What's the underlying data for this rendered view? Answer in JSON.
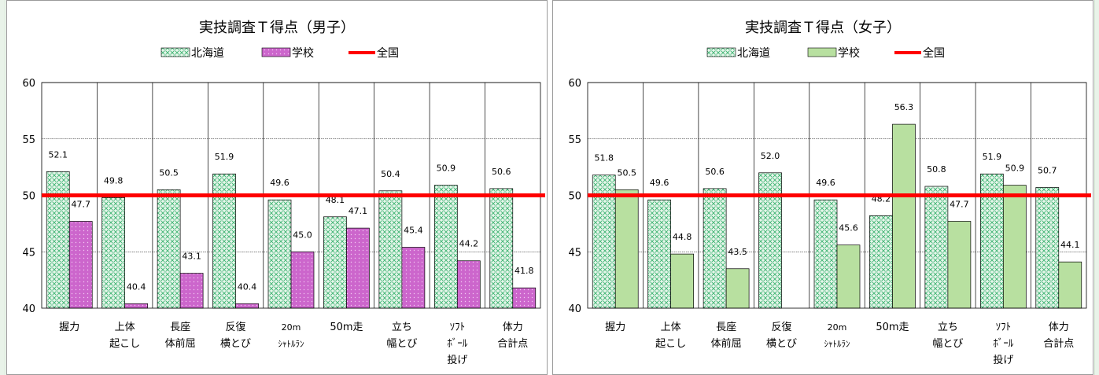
{
  "colors": {
    "hokkaido_fill": "#3cb371",
    "hokkaido_bg": "#e6f6ea",
    "school_boys": "#cc66cc",
    "school_girls": "#b8e0a0",
    "national_line": "#ff0000"
  },
  "chart_data": [
    {
      "type": "bar",
      "title": "実技調査Ｔ得点（男子）",
      "categories": [
        "握力",
        "上体\n起こし",
        "長座\n体前屈",
        "反復\n横とび",
        "20m\nｼｬﾄﾙﾗﾝ",
        "50m走",
        "立ち\n幅とび",
        "ｿﾌﾄ\nﾎﾞｰﾙ\n投げ",
        "体力\n合計点"
      ],
      "series": [
        {
          "name": "北海道",
          "values": [
            52.1,
            49.8,
            50.5,
            51.9,
            49.6,
            48.1,
            50.4,
            50.9,
            50.6
          ]
        },
        {
          "name": "学校",
          "values": [
            47.7,
            40.4,
            43.1,
            40.4,
            45.0,
            47.1,
            45.4,
            44.2,
            41.8
          ]
        }
      ],
      "reference_line": {
        "name": "全国",
        "value": 50
      },
      "ylim": [
        40,
        60
      ],
      "yticks": [
        40,
        45,
        50,
        55,
        60
      ],
      "grid": true,
      "legend": "top-center"
    },
    {
      "type": "bar",
      "title": "実技調査Ｔ得点（女子）",
      "categories": [
        "握力",
        "上体\n起こし",
        "長座\n体前屈",
        "反復\n横とび",
        "20m\nｼｬﾄﾙﾗﾝ",
        "50m走",
        "立ち\n幅とび",
        "ｿﾌﾄ\nﾎﾞｰﾙ\n投げ",
        "体力\n合計点"
      ],
      "series": [
        {
          "name": "北海道",
          "values": [
            51.8,
            49.6,
            50.6,
            52.0,
            49.6,
            48.2,
            50.8,
            51.9,
            50.7
          ]
        },
        {
          "name": "学校",
          "values": [
            50.5,
            44.8,
            43.5,
            null,
            45.6,
            56.3,
            47.7,
            50.9,
            44.1
          ]
        }
      ],
      "reference_line": {
        "name": "全国",
        "value": 50
      },
      "ylim": [
        40,
        60
      ],
      "yticks": [
        40,
        45,
        50,
        55,
        60
      ],
      "grid": true,
      "legend": "top-center"
    }
  ]
}
